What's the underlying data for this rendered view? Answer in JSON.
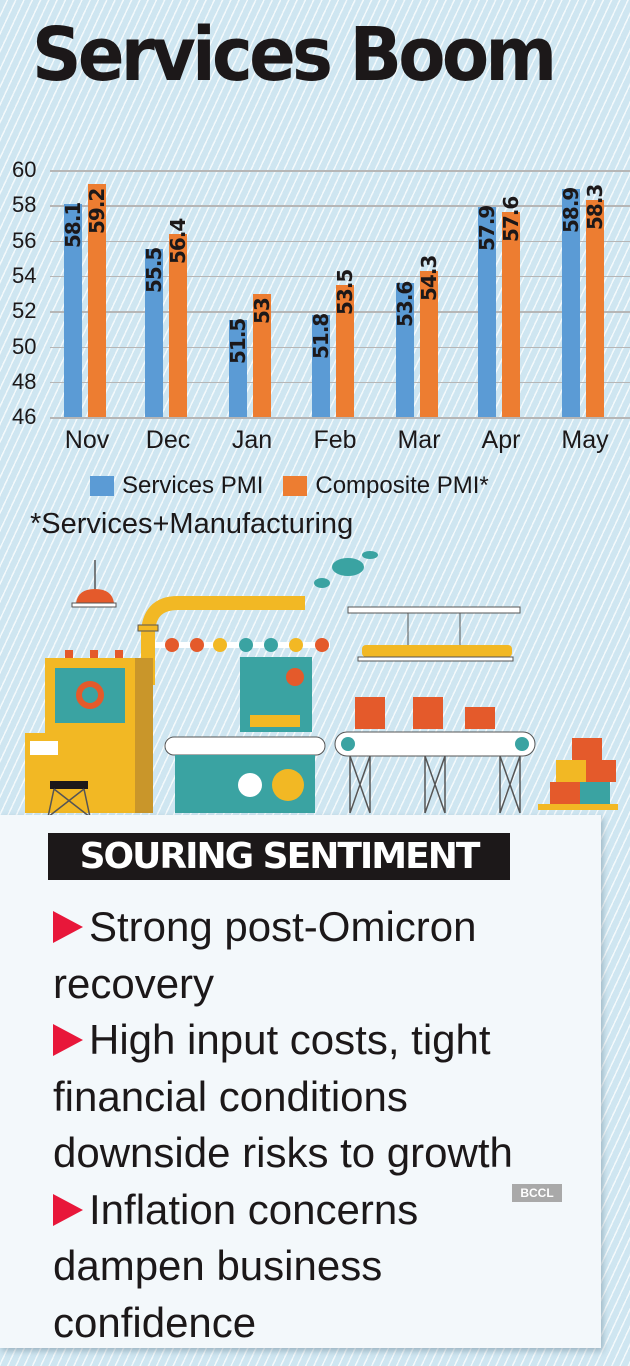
{
  "header": {
    "title": "Services Boom"
  },
  "chart_data": {
    "type": "bar",
    "title": "Services Boom",
    "categories": [
      "Nov",
      "Dec",
      "Jan",
      "Feb",
      "Mar",
      "Apr",
      "May"
    ],
    "series": [
      {
        "name": "Services PMI",
        "color": "#5b9bd5",
        "values": [
          58.1,
          55.5,
          51.5,
          51.8,
          53.6,
          57.9,
          58.9
        ]
      },
      {
        "name": "Composite PMI*",
        "color": "#ed7d31",
        "values": [
          59.2,
          56.4,
          53,
          53.5,
          54.3,
          57.6,
          58.3
        ]
      }
    ],
    "value_labels": {
      "services": [
        "58.1",
        "55.5",
        "51.5",
        "51.8",
        "53.6",
        "57.9",
        "58.9"
      ],
      "composite": [
        "59.2",
        "56.4",
        "53",
        "53.5",
        "54.3",
        "57.6",
        "58.3"
      ]
    },
    "yticks": [
      "60",
      "58",
      "56",
      "54",
      "52",
      "50",
      "48",
      "46"
    ],
    "ylim": [
      46,
      60
    ],
    "xlabel": "",
    "ylabel": "",
    "grid": true,
    "legend_position": "bottom",
    "legend": [
      "Services PMI",
      "Composite PMI*"
    ],
    "footnote": "*Services+Manufacturing"
  },
  "illustration": {
    "alt": "factory-machinery-illustration"
  },
  "panel": {
    "heading": "SOURING SENTIMENT",
    "bullets": [
      [
        "Strong post-Omicron",
        "recovery"
      ],
      [
        "High input costs, tight",
        "financial conditions",
        "downside risks to growth"
      ],
      [
        "Inflation concerns",
        "dampen business",
        "confidence"
      ]
    ],
    "credit": "BCCL"
  },
  "colors": {
    "services": "#5b9bd5",
    "composite": "#ed7d31",
    "bullet": "#e8173a",
    "background": "#cfe6f1"
  }
}
